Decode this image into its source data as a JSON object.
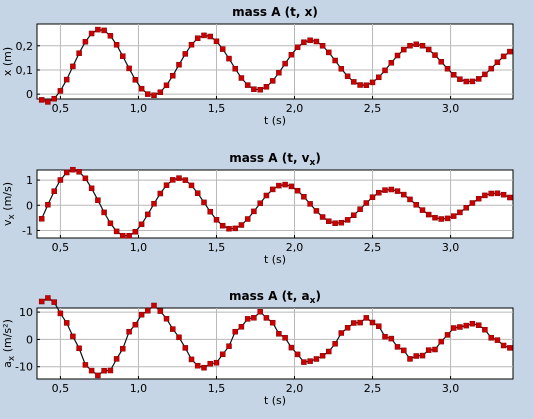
{
  "chart_data": [
    {
      "type": "scatter",
      "title": "mass A (t, x)",
      "title_parts": [
        {
          "t": "mass A (t, x)",
          "sub": false
        }
      ],
      "xlabel": "t (s)",
      "ylabel": "x (m)",
      "ylabel_parts": [
        {
          "t": "x (m)",
          "sub": false
        }
      ],
      "xlim": [
        0.35,
        3.4
      ],
      "ylim": [
        -0.02,
        0.29
      ],
      "xticks": [
        0.5,
        1.0,
        1.5,
        2.0,
        2.5,
        3.0
      ],
      "xtick_labels": [
        "0,5",
        "1,0",
        "1,5",
        "2,0",
        "2,5",
        "3,0"
      ],
      "yticks": [
        0,
        0.1,
        0.2
      ],
      "ytick_labels": [
        "0",
        "0,1",
        "0,2"
      ],
      "grid": true,
      "marker_color": "#cc0000",
      "line_color": "#111111",
      "model": {
        "offset": 0.125,
        "amp": 0.16,
        "decay": 0.28,
        "omega": 9.3,
        "phase": -0.75
      },
      "t_start": 0.38,
      "t_step": 0.04,
      "count": 76
    },
    {
      "type": "scatter",
      "title": "mass A (t, vx)",
      "title_parts": [
        {
          "t": "mass A (t, v",
          "sub": false
        },
        {
          "t": "x",
          "sub": true
        },
        {
          "t": ")",
          "sub": false
        }
      ],
      "xlabel": "t (s)",
      "ylabel": "vx (m/s)",
      "ylabel_parts": [
        {
          "t": "v",
          "sub": false
        },
        {
          "t": "x",
          "sub": true
        },
        {
          "t": " (m/s)",
          "sub": false
        }
      ],
      "xlim": [
        0.35,
        3.4
      ],
      "ylim": [
        -1.3,
        1.4
      ],
      "xticks": [
        0.5,
        1.0,
        1.5,
        2.0,
        2.5,
        3.0
      ],
      "xtick_labels": [
        "0,5",
        "1,0",
        "1,5",
        "2,0",
        "2,5",
        "3,0"
      ],
      "yticks": [
        -1,
        0,
        1
      ],
      "ytick_labels": [
        "-1",
        "0",
        "1"
      ],
      "grid": true,
      "marker_color": "#cc0000",
      "line_color": "#111111",
      "model": {
        "offset": 0.0,
        "amp": 1.55,
        "decay": 0.4,
        "omega": 9.3,
        "phase": 0.82
      },
      "t_start": 0.38,
      "t_step": 0.04,
      "count": 76
    },
    {
      "type": "scatter",
      "title": "mass A (t, ax)",
      "title_parts": [
        {
          "t": "mass A (t, a",
          "sub": false
        },
        {
          "t": "x",
          "sub": true
        },
        {
          "t": ")",
          "sub": false
        }
      ],
      "xlabel": "t (s)",
      "ylabel": "ax (m/s²)",
      "ylabel_parts": [
        {
          "t": "a",
          "sub": false
        },
        {
          "t": "x",
          "sub": true
        },
        {
          "t": " (m/s²)",
          "sub": false
        }
      ],
      "xlim": [
        0.35,
        3.4
      ],
      "ylim": [
        -14.5,
        11.5
      ],
      "xticks": [
        0.5,
        1.0,
        1.5,
        2.0,
        2.5,
        3.0
      ],
      "xtick_labels": [
        "0,5",
        "1,0",
        "1,5",
        "2,0",
        "2,5",
        "3,0"
      ],
      "yticks": [
        -10,
        0,
        10
      ],
      "ytick_labels": [
        "-10",
        "0",
        "10"
      ],
      "grid": true,
      "marker_color": "#cc0000",
      "line_color": "#111111",
      "model": {
        "offset": 0.0,
        "amp": 15.0,
        "decay": 0.35,
        "omega": 9.3,
        "phase": 2.39,
        "noise": 1.2
      },
      "t_start": 0.38,
      "t_step": 0.04,
      "count": 76
    }
  ]
}
